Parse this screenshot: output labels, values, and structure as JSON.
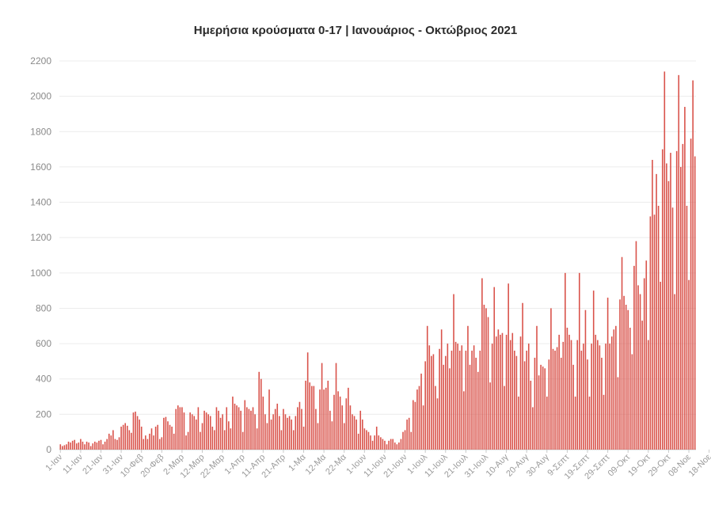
{
  "chart_data": {
    "type": "bar",
    "title": "Ημερήσια κρούσματα 0-17 | Ιανουάριος - Οκτώβριος 2021",
    "xlabel": "",
    "ylabel": "",
    "ylim": [
      0,
      2200
    ],
    "yticks": [
      0,
      200,
      400,
      600,
      800,
      1000,
      1200,
      1400,
      1600,
      1800,
      2000,
      2200
    ],
    "grid": true,
    "bar_color": "#d9524a",
    "tick_labels": [
      "1-Ιαν",
      "11-Ιαν",
      "21-Ιαν",
      "31-Ιαν",
      "10-Φεβ",
      "20-Φεβ",
      "2-Μαρ",
      "12-Μαρ",
      "22-Μαρ",
      "1-Απρ",
      "11-Απρ",
      "21-Απρ",
      "1-Μα",
      "12-Μα",
      "22-Μα",
      "1-Ιουν",
      "11-Ιουν",
      "21-Ιουν",
      "1-Ιουλ",
      "11-Ιουλ",
      "21-Ιουλ",
      "31-Ιουλ",
      "10-Αυγ",
      "20-Αυγ",
      "30-Αυγ",
      "9-Σεπτ",
      "19-Σεπτ",
      "29-Σεπτ",
      "09-Οκτ",
      "19-Οκτ",
      "29-Οκτ",
      "08-Νοε",
      "18-Νοε"
    ],
    "values": [
      30,
      20,
      25,
      30,
      45,
      40,
      50,
      55,
      35,
      40,
      60,
      45,
      30,
      45,
      40,
      20,
      35,
      45,
      40,
      50,
      55,
      30,
      45,
      60,
      90,
      80,
      110,
      60,
      55,
      70,
      130,
      140,
      150,
      135,
      110,
      95,
      210,
      215,
      190,
      170,
      130,
      60,
      80,
      60,
      90,
      120,
      80,
      130,
      140,
      60,
      70,
      180,
      185,
      160,
      140,
      130,
      90,
      230,
      250,
      240,
      240,
      210,
      80,
      100,
      210,
      200,
      190,
      170,
      240,
      100,
      150,
      220,
      210,
      200,
      190,
      130,
      110,
      240,
      220,
      180,
      200,
      110,
      240,
      160,
      120,
      300,
      260,
      250,
      240,
      220,
      100,
      280,
      240,
      230,
      220,
      240,
      200,
      120,
      440,
      400,
      300,
      200,
      150,
      340,
      170,
      200,
      230,
      260,
      190,
      110,
      230,
      200,
      180,
      190,
      170,
      110,
      190,
      240,
      270,
      230,
      130,
      390,
      550,
      380,
      360,
      360,
      230,
      150,
      340,
      490,
      340,
      350,
      390,
      220,
      160,
      310,
      490,
      330,
      300,
      250,
      150,
      290,
      350,
      250,
      200,
      190,
      170,
      90,
      220,
      170,
      120,
      110,
      100,
      80,
      50,
      80,
      130,
      80,
      70,
      60,
      50,
      30,
      50,
      60,
      60,
      40,
      30,
      40,
      60,
      100,
      110,
      170,
      180,
      100,
      280,
      270,
      340,
      360,
      430,
      250,
      500,
      700,
      590,
      530,
      540,
      360,
      290,
      570,
      680,
      480,
      530,
      600,
      460,
      560,
      880,
      610,
      600,
      560,
      590,
      330,
      560,
      700,
      480,
      560,
      590,
      520,
      440,
      560,
      970,
      820,
      800,
      750,
      380,
      600,
      920,
      640,
      680,
      650,
      660,
      360,
      650,
      940,
      620,
      660,
      560,
      530,
      300,
      640,
      830,
      500,
      560,
      600,
      390,
      240,
      520,
      700,
      420,
      480,
      470,
      460,
      300,
      510,
      800,
      570,
      560,
      580,
      650,
      520,
      610,
      1000,
      690,
      650,
      620,
      480,
      300,
      620,
      1000,
      560,
      600,
      790,
      510,
      300,
      600,
      900,
      650,
      620,
      590,
      520,
      310,
      600,
      860,
      600,
      640,
      680,
      700,
      410,
      850,
      1090,
      870,
      820,
      790,
      690,
      540,
      1040,
      1180,
      930,
      880,
      730,
      970,
      1070,
      620,
      1320,
      1640,
      1330,
      1560,
      1380,
      950,
      1700,
      2140,
      1620,
      1520,
      1680,
      1370,
      880,
      1690,
      2120,
      1600,
      1730,
      1940,
      1380,
      960,
      1760,
      2090,
      1660
    ]
  }
}
